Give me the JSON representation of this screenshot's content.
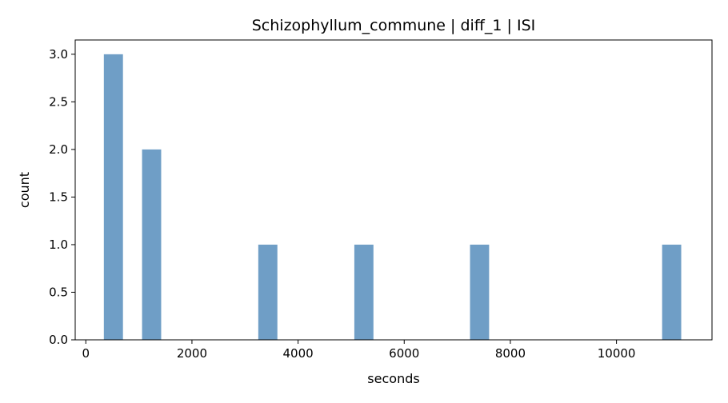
{
  "chart_data": {
    "type": "bar",
    "title": "Schizophyllum_commune | diff_1 | ISI",
    "xlabel": "seconds",
    "ylabel": "count",
    "xlim": [
      -200,
      11800
    ],
    "ylim": [
      0,
      3.15
    ],
    "xticks": [
      0,
      2000,
      4000,
      6000,
      8000,
      10000
    ],
    "xtick_labels": [
      "0",
      "2000",
      "4000",
      "6000",
      "8000",
      "10000"
    ],
    "yticks": [
      0,
      0.5,
      1.0,
      1.5,
      2.0,
      2.5,
      3.0
    ],
    "ytick_labels": [
      "0.0",
      "0.5",
      "1.0",
      "1.5",
      "2.0",
      "2.5",
      "3.0"
    ],
    "grid": false,
    "bar_color": "#6f9ec6",
    "bins": [
      {
        "x0": 340,
        "x1": 700,
        "count": 3
      },
      {
        "x0": 1060,
        "x1": 1420,
        "count": 2
      },
      {
        "x0": 3250,
        "x1": 3610,
        "count": 1
      },
      {
        "x0": 5060,
        "x1": 5420,
        "count": 1
      },
      {
        "x0": 7240,
        "x1": 7600,
        "count": 1
      },
      {
        "x0": 10860,
        "x1": 11220,
        "count": 1
      }
    ]
  }
}
